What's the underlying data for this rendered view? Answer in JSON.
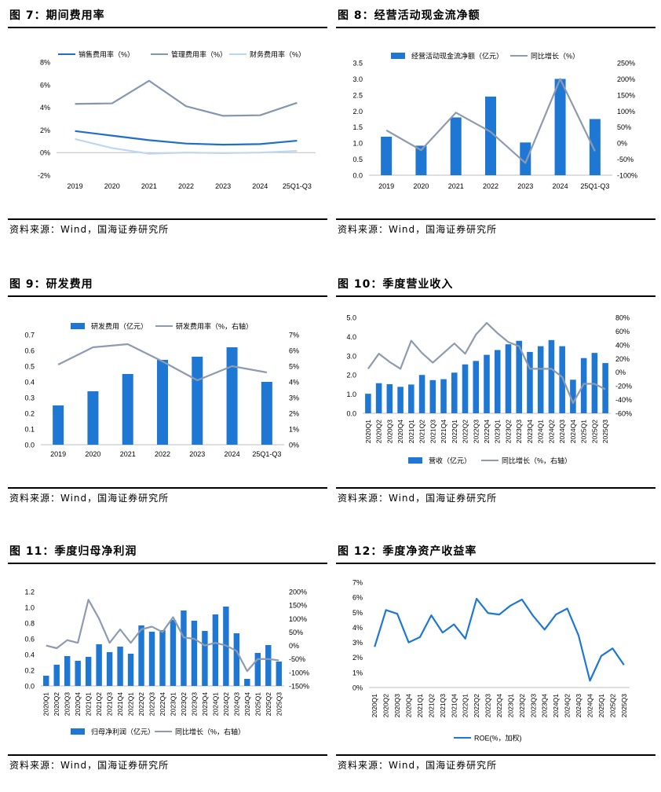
{
  "source_text": "资料来源：Wind，国海证券研究所",
  "chart_data": [
    {
      "id": "fig7",
      "figure_title": "图 7：期间费用率",
      "type": "line",
      "categories": [
        "2019",
        "2020",
        "2021",
        "2022",
        "2023",
        "2024",
        "25Q1-Q3"
      ],
      "series": [
        {
          "name": "销售费用率（%）",
          "values": [
            1.9,
            1.5,
            1.1,
            0.8,
            0.7,
            0.75,
            1.05
          ],
          "color": "#1f6fc5"
        },
        {
          "name": "管理费用率（%）",
          "values": [
            4.3,
            4.35,
            6.35,
            4.1,
            3.25,
            3.3,
            4.4
          ],
          "color": "#8496b0"
        },
        {
          "name": "财务费用率（%）",
          "values": [
            1.2,
            0.4,
            -0.1,
            0.0,
            -0.05,
            0.0,
            0.15
          ],
          "color": "#bdd7ee"
        }
      ],
      "y_ticks": [
        "8%",
        "6%",
        "4%",
        "2%",
        "0%",
        "-2%"
      ],
      "ylim": [
        -2,
        8
      ]
    },
    {
      "id": "fig8",
      "figure_title": "图 8：经营活动现金流净额",
      "type": "bar+line",
      "categories": [
        "2019",
        "2020",
        "2021",
        "2022",
        "2023",
        "2024",
        "25Q1-Q3"
      ],
      "bar_series": {
        "name": "经营活动现金流净额（亿元）",
        "values": [
          1.2,
          0.92,
          1.8,
          2.45,
          1.02,
          3.0,
          1.75
        ],
        "color": "#1f77d4"
      },
      "line_series": {
        "name": "同比增长（%）",
        "values": [
          40,
          -22,
          95,
          35,
          -62,
          200,
          -25
        ],
        "color": "#8e9aaf"
      },
      "y_left_ticks": [
        "3.5",
        "3.0",
        "2.5",
        "2.0",
        "1.5",
        "1.0",
        "0.5",
        "0.0"
      ],
      "y_right_ticks": [
        "250%",
        "200%",
        "150%",
        "100%",
        "50%",
        "0%",
        "-50%",
        "-100%"
      ],
      "ylim_left": [
        0,
        3.5
      ],
      "ylim_right": [
        -100,
        250
      ]
    },
    {
      "id": "fig9",
      "figure_title": "图 9：研发费用",
      "type": "bar+line",
      "categories": [
        "2019",
        "2020",
        "2021",
        "2022",
        "2023",
        "2024",
        "25Q1-Q3"
      ],
      "bar_series": {
        "name": "研发费用（亿元）",
        "values": [
          0.25,
          0.34,
          0.45,
          0.54,
          0.56,
          0.62,
          0.4
        ],
        "color": "#1f77d4"
      },
      "line_series": {
        "name": "研发费用率（%，右轴）",
        "values": [
          5.1,
          6.2,
          6.4,
          5.3,
          4.1,
          5.0,
          4.6
        ],
        "color": "#8e9aaf"
      },
      "y_left_ticks": [
        "0.7",
        "0.6",
        "0.5",
        "0.4",
        "0.3",
        "0.2",
        "0.1",
        "0.0"
      ],
      "y_right_ticks": [
        "7%",
        "6%",
        "5%",
        "4%",
        "3%",
        "2%",
        "1%",
        "0%"
      ],
      "ylim_left": [
        0,
        0.7
      ],
      "ylim_right": [
        0,
        7
      ]
    },
    {
      "id": "fig10",
      "figure_title": "图 10：季度营业收入",
      "type": "bar+line",
      "categories": [
        "2020Q1",
        "2020Q2",
        "2020Q3",
        "2020Q4",
        "2021Q1",
        "2021Q2",
        "2021Q3",
        "2021Q4",
        "2022Q1",
        "2022Q2",
        "2022Q3",
        "2022Q4",
        "2023Q1",
        "2023Q2",
        "2023Q3",
        "2023Q4",
        "2024Q1",
        "2024Q2",
        "2024Q3",
        "2024Q4",
        "2025Q1",
        "2025Q2",
        "2025Q3"
      ],
      "bar_series": {
        "name": "营收（亿元）",
        "values": [
          1.02,
          1.57,
          1.52,
          1.38,
          1.5,
          2.0,
          1.73,
          1.78,
          2.12,
          2.55,
          2.73,
          3.05,
          3.3,
          3.6,
          3.78,
          3.2,
          3.5,
          3.82,
          3.5,
          1.75,
          2.88,
          3.15,
          2.62
        ],
        "color": "#1f77d4"
      },
      "line_series": {
        "name": "同比增长（%，右轴）",
        "values": [
          5,
          27,
          15,
          5,
          46,
          28,
          14,
          28,
          42,
          27,
          55,
          72,
          57,
          44,
          38,
          5,
          5,
          5,
          -7,
          -45,
          -17,
          -17,
          -25
        ],
        "color": "#8e9aaf"
      },
      "y_left_ticks": [
        "5.0",
        "4.0",
        "3.0",
        "2.0",
        "1.0",
        "0.0"
      ],
      "y_right_ticks": [
        "80%",
        "60%",
        "40%",
        "20%",
        "0%",
        "-20%",
        "-40%",
        "-60%"
      ],
      "ylim_left": [
        0,
        5
      ],
      "ylim_right": [
        -60,
        80
      ]
    },
    {
      "id": "fig11",
      "figure_title": "图 11：季度归母净利润",
      "type": "bar+line",
      "categories": [
        "2020Q1",
        "2020Q2",
        "2020Q3",
        "2020Q4",
        "2021Q1",
        "2021Q2",
        "2021Q3",
        "2021Q4",
        "2022Q1",
        "2022Q2",
        "2022Q3",
        "2022Q4",
        "2023Q1",
        "2023Q2",
        "2023Q3",
        "2023Q4",
        "2024Q1",
        "2024Q2",
        "2024Q3",
        "2024Q4",
        "2025Q1",
        "2025Q2",
        "2025Q3"
      ],
      "bar_series": {
        "name": "归母净利润（亿元）",
        "values": [
          0.13,
          0.27,
          0.38,
          0.32,
          0.37,
          0.53,
          0.43,
          0.5,
          0.41,
          0.77,
          0.69,
          0.71,
          0.84,
          0.96,
          0.83,
          0.7,
          0.91,
          1.01,
          0.67,
          0.09,
          0.42,
          0.52,
          0.31
        ],
        "color": "#1f77d4"
      },
      "line_series": {
        "name": "同比增长（%，右轴）",
        "values": [
          0,
          -10,
          20,
          10,
          170,
          100,
          10,
          60,
          10,
          60,
          70,
          50,
          105,
          30,
          25,
          0,
          10,
          0,
          -20,
          -95,
          -50,
          -50,
          -55
        ],
        "color": "#8e9aaf"
      },
      "y_left_ticks": [
        "1.2",
        "1.0",
        "0.8",
        "0.6",
        "0.4",
        "0.2",
        "0.0"
      ],
      "y_right_ticks": [
        "200%",
        "150%",
        "100%",
        "50%",
        "0%",
        "-50%",
        "-100%",
        "-150%"
      ],
      "ylim_left": [
        0,
        1.2
      ],
      "ylim_right": [
        -150,
        200
      ]
    },
    {
      "id": "fig12",
      "figure_title": "图 12：季度净资产收益率",
      "type": "line",
      "categories": [
        "2020Q1",
        "2020Q2",
        "2020Q3",
        "2020Q4",
        "2021Q1",
        "2021Q2",
        "2021Q3",
        "2021Q4",
        "2022Q1",
        "2022Q2",
        "2022Q3",
        "2022Q4",
        "2023Q1",
        "2023Q2",
        "2023Q3",
        "2023Q4",
        "2024Q1",
        "2024Q2",
        "2024Q3",
        "2024Q4",
        "2025Q1",
        "2025Q2",
        "2025Q3"
      ],
      "series": [
        {
          "name": "ROE(%，加权)",
          "values": [
            2.7,
            5.15,
            4.9,
            3.0,
            3.35,
            4.8,
            3.65,
            4.2,
            3.25,
            5.9,
            4.95,
            4.85,
            5.45,
            5.85,
            4.75,
            3.85,
            4.85,
            5.25,
            3.45,
            0.45,
            2.1,
            2.6,
            1.5
          ],
          "color": "#1f77d4"
        }
      ],
      "y_ticks": [
        "7%",
        "6%",
        "5%",
        "4%",
        "3%",
        "2%",
        "1%",
        "0%"
      ],
      "ylim": [
        0,
        7
      ]
    }
  ]
}
